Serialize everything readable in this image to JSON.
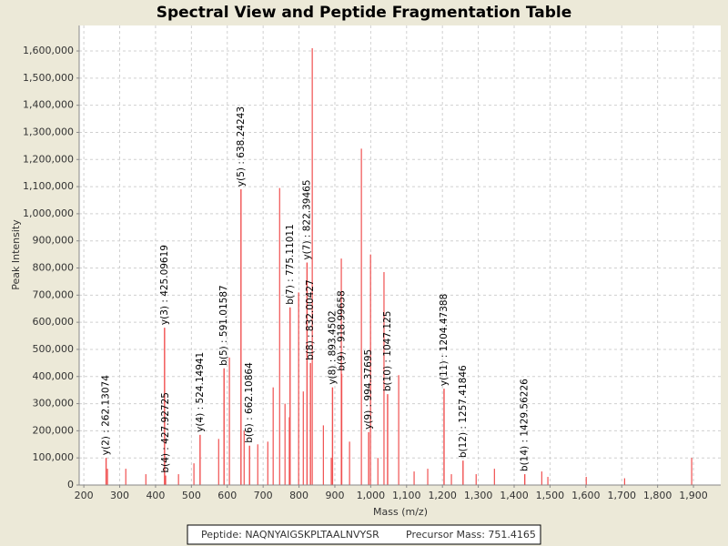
{
  "chart_data": {
    "type": "spectrum",
    "title": "Spectral View and Peptide Fragmentation Table",
    "x_label": "Mass (m/z)",
    "y_label": "Peak Intensity",
    "color": "#f05050",
    "grid": true,
    "xlim": [
      187,
      1976
    ],
    "ylim": [
      0,
      1694000
    ],
    "xticks": [
      200,
      300,
      400,
      500,
      600,
      700,
      800,
      900,
      {
        "value": 1000,
        "label": "1,000"
      },
      {
        "value": 1100,
        "label": "1,100"
      },
      {
        "value": 1200,
        "label": "1,200"
      },
      {
        "value": 1300,
        "label": "1,300"
      },
      {
        "value": 1400,
        "label": "1,400"
      },
      {
        "value": 1500,
        "label": "1,500"
      },
      {
        "value": 1600,
        "label": "1,600"
      },
      {
        "value": 1700,
        "label": "1,700"
      },
      {
        "value": 1800,
        "label": "1,800"
      },
      {
        "value": 1900,
        "label": "1,900"
      }
    ],
    "yticks": [
      0,
      {
        "value": 100000,
        "label": "100,000"
      },
      {
        "value": 200000,
        "label": "200,000"
      },
      {
        "value": 300000,
        "label": "300,000"
      },
      {
        "value": 400000,
        "label": "400,000"
      },
      {
        "value": 500000,
        "label": "500,000"
      },
      {
        "value": 600000,
        "label": "600,000"
      },
      {
        "value": 700000,
        "label": "700,000"
      },
      {
        "value": 800000,
        "label": "800,000"
      },
      {
        "value": 900000,
        "label": "900,000"
      },
      {
        "value": 1000000,
        "label": "1,000,000"
      },
      {
        "value": 1100000,
        "label": "1,100,000"
      },
      {
        "value": 1200000,
        "label": "1,200,000"
      },
      {
        "value": 1300000,
        "label": "1,300,000"
      },
      {
        "value": 1400000,
        "label": "1,400,000"
      },
      {
        "value": 1500000,
        "label": "1,500,000"
      },
      {
        "value": 1600000,
        "label": "1,600,000"
      }
    ],
    "x": [
      266,
      317,
      373,
      464,
      507,
      576,
      606,
      647,
      685,
      713,
      728,
      746,
      761,
      773,
      799,
      812,
      837,
      868,
      890,
      918,
      941,
      974,
      999.5,
      1020,
      1037,
      1078,
      1121,
      1159,
      1225,
      1294,
      1345,
      1477,
      1494,
      1601,
      1708,
      1895
    ],
    "values": [
      60000,
      60000,
      40000,
      40000,
      80000,
      170000,
      470000,
      200000,
      150000,
      160000,
      360000,
      1095000,
      300000,
      250000,
      710000,
      345000,
      1610000,
      220000,
      100000,
      835000,
      160000,
      1240000,
      850000,
      100000,
      785000,
      405000,
      50000,
      60000,
      40000,
      40000,
      60000,
      50000,
      30000,
      30000,
      25000,
      100000
    ],
    "annotations": [
      {
        "text": "y(2) : 262.13074",
        "x": 262.13074,
        "y": 100000
      },
      {
        "text": "y(3) : 425.09619",
        "x": 425.09619,
        "y": 580000
      },
      {
        "text": "b(4) : 427.92725",
        "x": 427.92725,
        "y": 35000
      },
      {
        "text": "y(4) : 524.14941",
        "x": 524.14941,
        "y": 185000
      },
      {
        "text": "b(5) : 591.01587",
        "x": 591.01587,
        "y": 430000
      },
      {
        "text": "y(5) : 638.24243",
        "x": 638.24243,
        "y": 1090000
      },
      {
        "text": "b(6) : 662.10864",
        "x": 662.10864,
        "y": 145000
      },
      {
        "text": "b(7) : 775.11011",
        "x": 775.11011,
        "y": 655000
      },
      {
        "text": "y(7) : 822.39465",
        "x": 822.39465,
        "y": 820000
      },
      {
        "text": "b(8) : 832.00427",
        "x": 832.00427,
        "y": 450000
      },
      {
        "text": "y(8) : 893.4502",
        "x": 893.4502,
        "y": 360000
      },
      {
        "text": "b(9) : 918.99658",
        "x": 918.99658,
        "y": 410000
      },
      {
        "text": "y(9) : 994.37695",
        "x": 994.37695,
        "y": 195000
      },
      {
        "text": "b(10) : 1047.125",
        "x": 1047.125,
        "y": 335000
      },
      {
        "text": "y(11) : 1204.47388",
        "x": 1204.47388,
        "y": 355000
      },
      {
        "text": "b(12) : 1257.41846",
        "x": 1257.41846,
        "y": 90000
      },
      {
        "text": "b(14) : 1429.56226",
        "x": 1429.56226,
        "y": 40000
      }
    ]
  },
  "footer": {
    "peptide": "Peptide: NAQNYAIGSKPLTAALNVYSR",
    "precursor": "Precursor Mass: 751.4165"
  }
}
